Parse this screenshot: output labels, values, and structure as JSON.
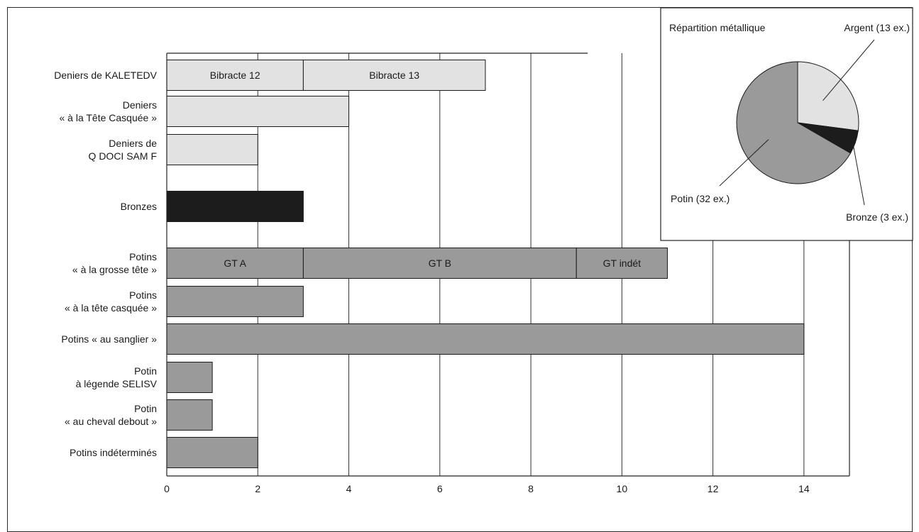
{
  "chart_data": [
    {
      "type": "bar",
      "orientation": "horizontal",
      "stacked": true,
      "xlim": [
        0,
        15
      ],
      "x_ticks": [
        "0",
        "2",
        "4",
        "6",
        "8",
        "10",
        "12",
        "14"
      ],
      "grid": "vertical",
      "categories": [
        {
          "lines": [
            "Deniers de KALETEDV"
          ]
        },
        {
          "lines": [
            "Deniers",
            "« à la Tête Casquée »"
          ]
        },
        {
          "lines": [
            "Deniers de",
            "Q DOCI SAM F"
          ]
        },
        {
          "lines": [
            "Bronzes"
          ]
        },
        {
          "lines": [
            "Potins",
            "« à la grosse tête »"
          ]
        },
        {
          "lines": [
            "Potins",
            "« à la tête casquée »"
          ]
        },
        {
          "lines": [
            "Potins « au sanglier »"
          ]
        },
        {
          "lines": [
            "Potin",
            "à légende SELISV"
          ]
        },
        {
          "lines": [
            "Potin",
            "« au cheval debout »"
          ]
        },
        {
          "lines": [
            "Potins indéterminés"
          ]
        }
      ],
      "bars": [
        {
          "metal": "argent",
          "segments": [
            {
              "label": "Bibracte 12",
              "value": 3
            },
            {
              "label": "Bibracte 13",
              "value": 4
            }
          ]
        },
        {
          "metal": "argent",
          "segments": [
            {
              "label": "",
              "value": 4
            }
          ]
        },
        {
          "metal": "argent",
          "segments": [
            {
              "label": "",
              "value": 2
            }
          ]
        },
        {
          "metal": "bronze",
          "segments": [
            {
              "label": "",
              "value": 3
            }
          ]
        },
        {
          "metal": "potin",
          "segments": [
            {
              "label": "GT A",
              "value": 3
            },
            {
              "label": "GT B",
              "value": 6
            },
            {
              "label": "GT indét",
              "value": 2
            }
          ]
        },
        {
          "metal": "potin",
          "segments": [
            {
              "label": "",
              "value": 3
            }
          ]
        },
        {
          "metal": "potin",
          "segments": [
            {
              "label": "",
              "value": 14
            }
          ]
        },
        {
          "metal": "potin",
          "segments": [
            {
              "label": "",
              "value": 1
            }
          ]
        },
        {
          "metal": "potin",
          "segments": [
            {
              "label": "",
              "value": 1
            }
          ]
        },
        {
          "metal": "potin",
          "segments": [
            {
              "label": "",
              "value": 2
            }
          ]
        }
      ],
      "colors": {
        "argent": "#e2e2e2",
        "bronze": "#1c1c1c",
        "potin": "#9a9a9b"
      }
    },
    {
      "type": "pie",
      "title": "Répartition métallique",
      "slices": [
        {
          "label": "Argent (13 ex.)",
          "value": 13,
          "color": "#e2e2e2"
        },
        {
          "label": "Bronze (3 ex.)",
          "value": 3,
          "color": "#1c1c1c"
        },
        {
          "label": "Potin (32 ex.)",
          "value": 32,
          "color": "#9a9a9b"
        }
      ]
    }
  ]
}
